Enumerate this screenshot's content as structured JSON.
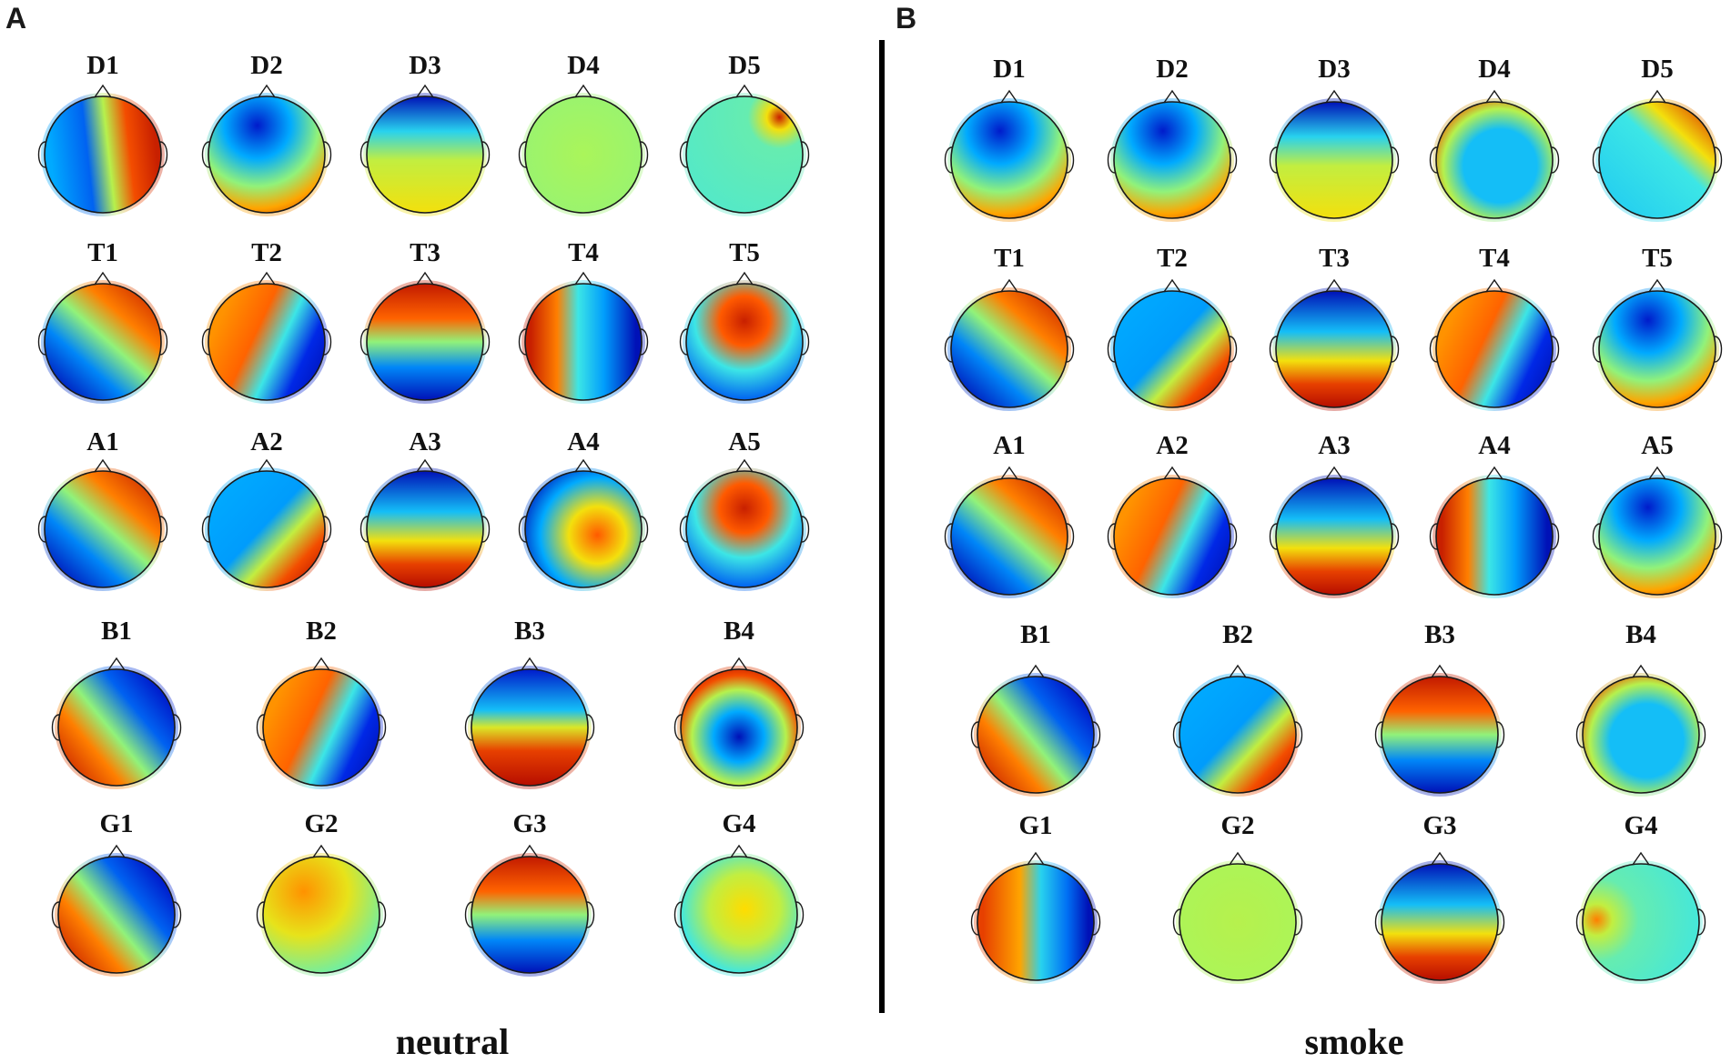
{
  "panels": [
    {
      "id": "A",
      "letter": "A",
      "condition": "neutral",
      "rows": [
        {
          "maps": [
            {
              "label": "D1",
              "pattern": "lr"
            },
            {
              "label": "D2",
              "pattern": "tb"
            },
            {
              "label": "D3",
              "pattern": "tb2"
            },
            {
              "label": "D4",
              "pattern": "flat"
            },
            {
              "label": "D5",
              "pattern": "flat2"
            }
          ]
        },
        {
          "maps": [
            {
              "label": "T1",
              "pattern": "diagA"
            },
            {
              "label": "T2",
              "pattern": "rl"
            },
            {
              "label": "T3",
              "pattern": "bt"
            },
            {
              "label": "T4",
              "pattern": "rl2"
            },
            {
              "label": "T5",
              "pattern": "center"
            }
          ]
        },
        {
          "maps": [
            {
              "label": "A1",
              "pattern": "diagA"
            },
            {
              "label": "A2",
              "pattern": "diagB"
            },
            {
              "label": "A3",
              "pattern": "tb3"
            },
            {
              "label": "A4",
              "pattern": "rl3"
            },
            {
              "label": "A5",
              "pattern": "center"
            }
          ]
        },
        {
          "maps": [
            {
              "label": "B1",
              "pattern": "diagC"
            },
            {
              "label": "B2",
              "pattern": "rl"
            },
            {
              "label": "B3",
              "pattern": "tb4"
            },
            {
              "label": "B4",
              "pattern": "ring"
            }
          ]
        },
        {
          "maps": [
            {
              "label": "G1",
              "pattern": "diagC"
            },
            {
              "label": "G2",
              "pattern": "warm"
            },
            {
              "label": "G3",
              "pattern": "bt"
            },
            {
              "label": "G4",
              "pattern": "mild"
            }
          ]
        }
      ]
    },
    {
      "id": "B",
      "letter": "B",
      "condition": "smoke",
      "rows": [
        {
          "maps": [
            {
              "label": "D1",
              "pattern": "tb"
            },
            {
              "label": "D2",
              "pattern": "tb"
            },
            {
              "label": "D3",
              "pattern": "tb2"
            },
            {
              "label": "D4",
              "pattern": "ring2"
            },
            {
              "label": "D5",
              "pattern": "diagD"
            }
          ]
        },
        {
          "maps": [
            {
              "label": "T1",
              "pattern": "diagA"
            },
            {
              "label": "T2",
              "pattern": "diagB"
            },
            {
              "label": "T3",
              "pattern": "tb3"
            },
            {
              "label": "T4",
              "pattern": "rl"
            },
            {
              "label": "T5",
              "pattern": "tb"
            }
          ]
        },
        {
          "maps": [
            {
              "label": "A1",
              "pattern": "diagA"
            },
            {
              "label": "A2",
              "pattern": "rl"
            },
            {
              "label": "A3",
              "pattern": "tb3"
            },
            {
              "label": "A4",
              "pattern": "rl2"
            },
            {
              "label": "A5",
              "pattern": "tb"
            }
          ]
        },
        {
          "maps": [
            {
              "label": "B1",
              "pattern": "diagC"
            },
            {
              "label": "B2",
              "pattern": "diagB"
            },
            {
              "label": "B3",
              "pattern": "bt"
            },
            {
              "label": "B4",
              "pattern": "ring2"
            }
          ]
        },
        {
          "maps": [
            {
              "label": "G1",
              "pattern": "rl4"
            },
            {
              "label": "G2",
              "pattern": "flat3"
            },
            {
              "label": "G3",
              "pattern": "tb3"
            },
            {
              "label": "G4",
              "pattern": "flat4"
            }
          ]
        }
      ]
    }
  ]
}
